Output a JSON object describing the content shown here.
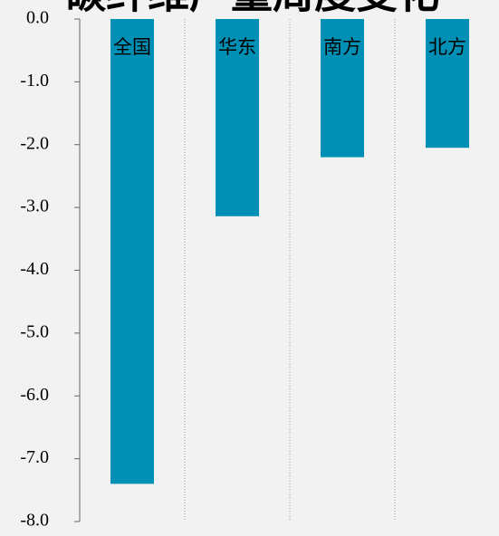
{
  "chart_data": {
    "type": "bar",
    "title": "碳纤维产量周度变化",
    "categories": [
      "全国",
      "华东",
      "南方",
      "北方"
    ],
    "values": [
      -7.4,
      -3.14,
      -2.2,
      -2.05
    ],
    "color": "#0090b5",
    "ylim": [
      -8,
      0
    ],
    "yticks": [
      {
        "value": 0,
        "label": "0.0"
      },
      {
        "value": -1,
        "label": "-1.0"
      },
      {
        "value": -2,
        "label": "-2.0"
      },
      {
        "value": -3,
        "label": "-3.0"
      },
      {
        "value": -4,
        "label": "-4.0"
      },
      {
        "value": -5,
        "label": "-5.0"
      },
      {
        "value": -6,
        "label": "-6.0"
      },
      {
        "value": -7,
        "label": "-7.0"
      },
      {
        "value": -8,
        "label": "-8.0"
      }
    ]
  }
}
